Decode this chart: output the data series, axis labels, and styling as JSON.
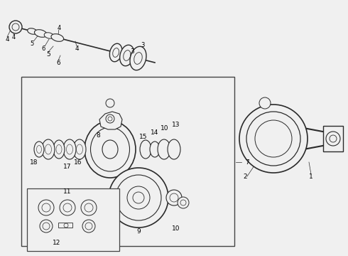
{
  "bg": "#f0f0f0",
  "lc": "#2a2a2a",
  "fc": "#f0f0f0",
  "white": "#f0f0f0",
  "fig_w": 4.9,
  "fig_h": 3.6,
  "dpi": 100
}
